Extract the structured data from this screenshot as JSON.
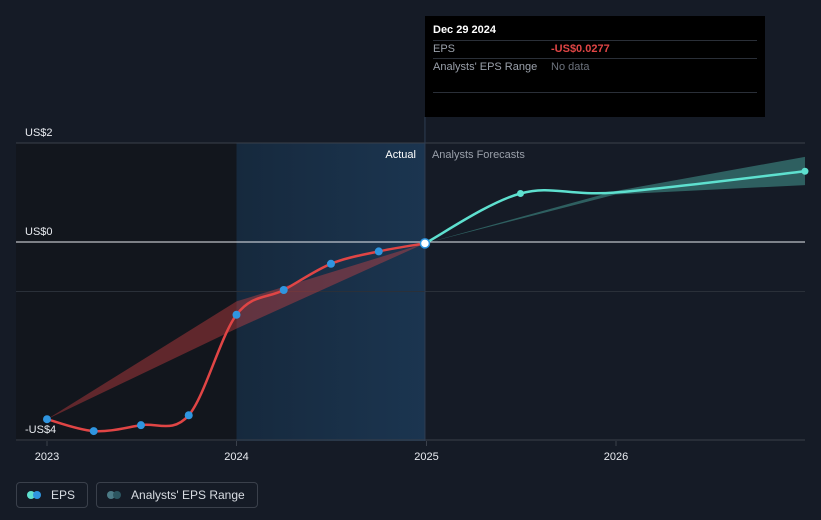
{
  "chart_data": {
    "type": "line",
    "x_ticks": [
      "2023",
      "2024",
      "2025",
      "2026"
    ],
    "y_ticks": [
      {
        "label": "US$2",
        "value": 2
      },
      {
        "label": "US$0",
        "value": 0
      },
      {
        "label": "-US$4",
        "value": -4
      }
    ],
    "ylim": [
      -4,
      2
    ],
    "divider_labels": {
      "actual": "Actual",
      "forecast": "Analysts Forecasts"
    },
    "series": [
      {
        "name": "EPS",
        "color": "#e04545",
        "points": [
          {
            "x": "2023-01-01",
            "y": -3.58
          },
          {
            "x": "2023-04-01",
            "y": -3.82
          },
          {
            "x": "2023-07-01",
            "y": -3.7
          },
          {
            "x": "2023-10-01",
            "y": -3.5
          },
          {
            "x": "2024-01-01",
            "y": -1.47
          },
          {
            "x": "2024-04-01",
            "y": -0.97
          },
          {
            "x": "2024-07-01",
            "y": -0.44
          },
          {
            "x": "2024-10-01",
            "y": -0.19
          },
          {
            "x": "2024-12-29",
            "y": -0.0277
          }
        ]
      },
      {
        "name": "EPS forecast",
        "color": "#5ee0cf",
        "points": [
          {
            "x": "2024-12-29",
            "y": -0.0277
          },
          {
            "x": "2025-07-01",
            "y": 0.98
          },
          {
            "x": "2025-12-31",
            "y": 1.0
          },
          {
            "x": "2026-12-31",
            "y": 1.43
          }
        ]
      }
    ],
    "ranges": [
      {
        "name": "Analysts' EPS Range",
        "color": "#e04545",
        "upper": [
          {
            "x": "2023-01-01",
            "y": -3.58
          },
          {
            "x": "2024-01-01",
            "y": -1.2
          },
          {
            "x": "2024-12-29",
            "y": -0.0277
          }
        ],
        "lower": [
          {
            "x": "2023-01-01",
            "y": -3.58
          },
          {
            "x": "2024-01-01",
            "y": -1.75
          },
          {
            "x": "2024-12-29",
            "y": -0.0277
          }
        ]
      },
      {
        "name": "Analysts' EPS Range forecast",
        "color": "#5ee0cf",
        "upper": [
          {
            "x": "2024-12-29",
            "y": -0.0277
          },
          {
            "x": "2025-12-31",
            "y": 1.03
          },
          {
            "x": "2026-12-31",
            "y": 1.72
          }
        ],
        "lower": [
          {
            "x": "2024-12-29",
            "y": -0.0277
          },
          {
            "x": "2025-12-31",
            "y": 0.96
          },
          {
            "x": "2026-12-31",
            "y": 1.15
          }
        ]
      }
    ],
    "highlight_region": {
      "from": "2024-01-01",
      "to": "2024-12-29"
    },
    "colors": {
      "eps_actual": "#e04545",
      "eps_forecast": "#5ee0cf",
      "marker": "#2f95e0",
      "background": "#151b26",
      "highlight": "#1b3550"
    }
  },
  "tooltip": {
    "date": "Dec 29 2024",
    "rows": [
      {
        "key": "EPS",
        "value": "-US$0.0277"
      },
      {
        "key": "Analysts' EPS Range",
        "value": "No data"
      }
    ]
  },
  "legend": [
    {
      "label": "EPS",
      "colors": [
        "#5ee0cf",
        "#2f95e0"
      ]
    },
    {
      "label": "Analysts' EPS Range",
      "colors": [
        "#4b7a86",
        "#2c5560"
      ]
    }
  ]
}
